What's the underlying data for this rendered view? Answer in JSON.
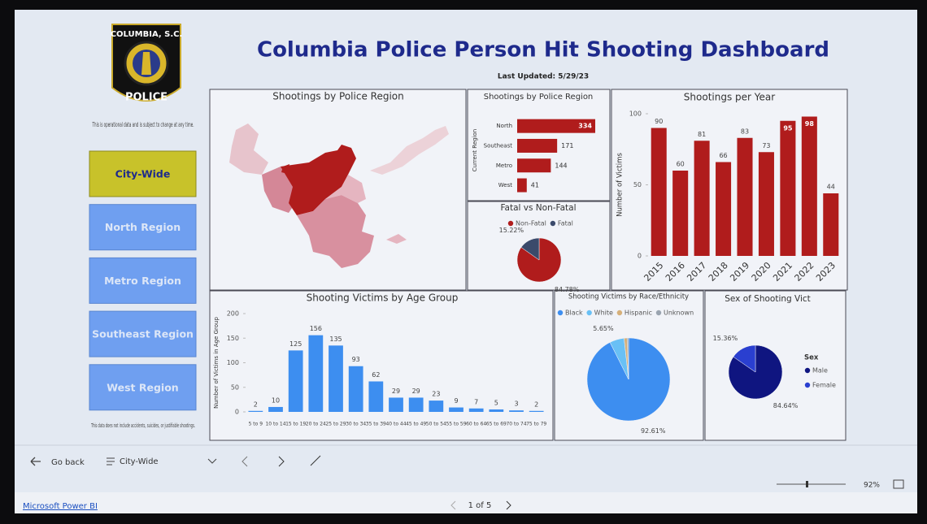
{
  "header": {
    "title": "Columbia Police Person Hit Shooting Dashboard",
    "updated": "Last Updated: 5/29/23",
    "logo_top": "COLUMBIA, S.C.",
    "logo_bottom": "POLICE"
  },
  "sidebar": {
    "note_top": "This is operational data and is subject to change at any time.",
    "buttons": [
      "City-Wide",
      "North Region",
      "Metro Region",
      "Southeast Region",
      "West Region"
    ],
    "note_bottom": "This data does not include accidents, suicides, or justifiable shootings."
  },
  "map": {
    "title": "Shootings by Police Region"
  },
  "chart_data": [
    {
      "type": "bar",
      "orientation": "horizontal",
      "title": "Shootings by Police Region",
      "y_label": "Current Region",
      "categories": [
        "North",
        "Southeast",
        "Metro",
        "West"
      ],
      "values": [
        334,
        171,
        144,
        41
      ],
      "color": "#b01c1c"
    },
    {
      "type": "pie",
      "title": "Fatal vs Non-Fatal",
      "categories": [
        "Non-Fatal",
        "Fatal"
      ],
      "values": [
        84.78,
        15.22
      ],
      "value_labels": [
        "84.78%",
        "15.22%"
      ],
      "colors": [
        "#b01c1c",
        "#3b4a6b"
      ]
    },
    {
      "type": "bar",
      "title": "Shootings per Year",
      "y_label": "Number of Victims",
      "categories": [
        "2015",
        "2016",
        "2017",
        "2018",
        "2019",
        "2020",
        "2021",
        "2022",
        "2023"
      ],
      "values": [
        90,
        60,
        81,
        66,
        83,
        73,
        95,
        98,
        44
      ],
      "color": "#b01c1c",
      "ylim": [
        0,
        100
      ],
      "yticks": [
        0,
        50,
        100
      ]
    },
    {
      "type": "bar",
      "title": "Shooting Victims by Age Group",
      "y_label": "Number of Victims in Age Group",
      "categories": [
        "5 to 9",
        "10 to 14",
        "15 to 19",
        "20 to 24",
        "25 to 29",
        "30 to 34",
        "35 to 39",
        "40 to 44",
        "45 to 49",
        "50 to 54",
        "55 to 59",
        "60 to 64",
        "65 to 69",
        "70 to 74",
        "75 to 79"
      ],
      "values": [
        2,
        10,
        125,
        156,
        135,
        93,
        62,
        29,
        29,
        23,
        9,
        7,
        5,
        3,
        2
      ],
      "color": "#3d8ef0",
      "ylim": [
        0,
        200
      ],
      "yticks": [
        0,
        50,
        100,
        150,
        200
      ]
    },
    {
      "type": "pie",
      "title": "Shooting Victims by Race/Ethnicity",
      "categories": [
        "Black",
        "White",
        "Hispanic",
        "Unknown"
      ],
      "values": [
        92.61,
        5.65,
        1.2,
        0.54
      ],
      "value_labels": [
        "92.61%",
        "5.65%",
        null,
        null
      ],
      "colors": [
        "#3d8ef0",
        "#69c0f5",
        "#d6b07a",
        "#9aa4b0"
      ]
    },
    {
      "type": "pie",
      "title": "Sex of Shooting Vict",
      "legend_title": "Sex",
      "categories": [
        "Male",
        "Female"
      ],
      "values": [
        84.64,
        15.36
      ],
      "value_labels": [
        "84.64%",
        "15.36%"
      ],
      "colors": [
        "#0f1580",
        "#2a3fd0"
      ]
    }
  ],
  "footer": {
    "back": "Go back",
    "page_name": "City-Wide",
    "brand": "Microsoft Power BI",
    "pager": "1 of 5",
    "zoom": "92%"
  }
}
